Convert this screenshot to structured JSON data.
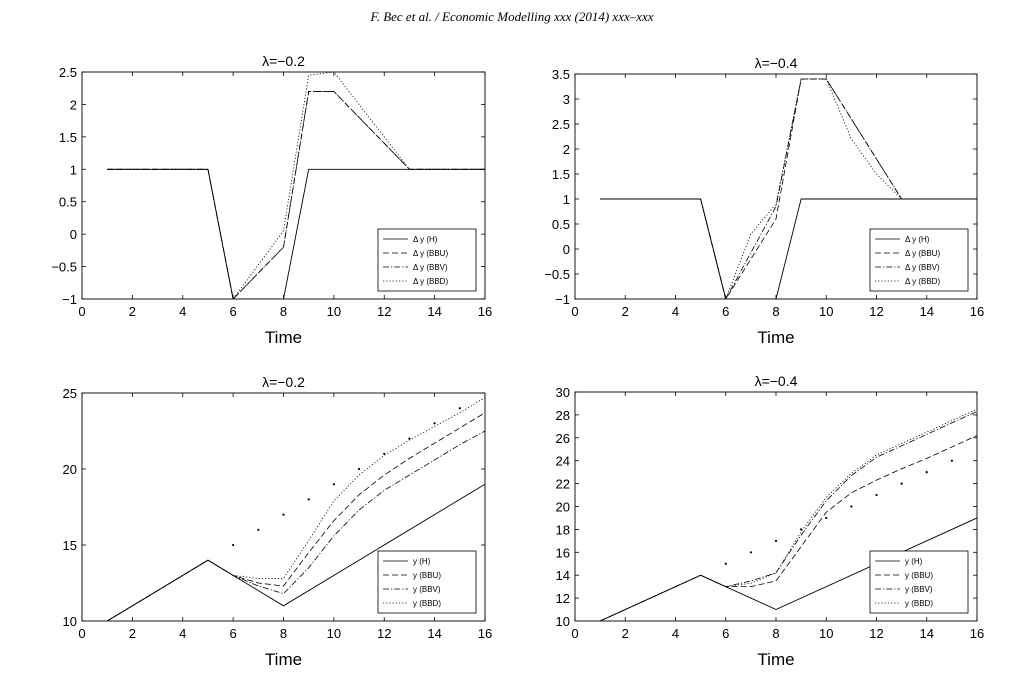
{
  "header": {
    "text": "F. Bec et al. / Economic Modelling xxx (2014) xxx–xxx"
  },
  "line_styles": {
    "H": "solid",
    "BBU": "dashed",
    "BBV": "dashdot",
    "BBD": "dotted"
  },
  "chart_data": [
    {
      "type": "line",
      "title": "λ=−0.2",
      "xlabel": "Time",
      "ylabel": "",
      "xlim": [
        0,
        16
      ],
      "ylim": [
        -1,
        2.5
      ],
      "xticks": [
        "0",
        "2",
        "4",
        "6",
        "8",
        "10",
        "12",
        "14",
        "16"
      ],
      "yticks": [
        "−1",
        "−0.5",
        "0",
        "0.5",
        "1",
        "1.5",
        "2",
        "2.5"
      ],
      "legend_position": "bottom-right",
      "series": [
        {
          "name": "Δ y (H)",
          "style": "H",
          "x": [
            1,
            5,
            6,
            8,
            9,
            16
          ],
          "y": [
            1,
            1,
            -1,
            -1,
            1,
            1
          ]
        },
        {
          "name": "Δ y (BBU)",
          "style": "BBU",
          "x": [
            1,
            5,
            6,
            8,
            9,
            10,
            13,
            16
          ],
          "y": [
            1,
            1,
            -1,
            -0.2,
            2.2,
            2.2,
            1,
            1
          ]
        },
        {
          "name": "Δ y (BBV)",
          "style": "BBV",
          "x": [
            1,
            5,
            6,
            8,
            9,
            10,
            13,
            16
          ],
          "y": [
            1,
            1,
            -1,
            -0.2,
            2.2,
            2.2,
            1,
            1
          ]
        },
        {
          "name": "Δ y (BBD)",
          "style": "BBD",
          "x": [
            1,
            5,
            6,
            8,
            9,
            10,
            13,
            16
          ],
          "y": [
            1,
            1,
            -1,
            0.05,
            2.45,
            2.5,
            1,
            1
          ]
        }
      ]
    },
    {
      "type": "line",
      "title": "λ=−0.4",
      "xlabel": "Time",
      "ylabel": "",
      "xlim": [
        0,
        16
      ],
      "ylim": [
        -1,
        3.5
      ],
      "xticks": [
        "0",
        "2",
        "4",
        "6",
        "8",
        "10",
        "12",
        "14",
        "16"
      ],
      "yticks": [
        "−1",
        "−0.5",
        "0",
        "0.5",
        "1",
        "1.5",
        "2",
        "2.5",
        "3",
        "3.5"
      ],
      "legend_position": "bottom-right",
      "series": [
        {
          "name": "Δ y (H)",
          "style": "H",
          "x": [
            1,
            5,
            6,
            8,
            9,
            16
          ],
          "y": [
            1,
            1,
            -1,
            -1,
            1,
            1
          ]
        },
        {
          "name": "Δ y (BBU)",
          "style": "BBU",
          "x": [
            1,
            5,
            6,
            8,
            9,
            10,
            13,
            16
          ],
          "y": [
            1,
            1,
            -1,
            0.6,
            3.4,
            3.4,
            1,
            1
          ]
        },
        {
          "name": "Δ y (BBV)",
          "style": "BBV",
          "x": [
            1,
            5,
            6,
            8,
            9,
            10,
            13,
            16
          ],
          "y": [
            1,
            1,
            -1,
            0.85,
            3.4,
            3.4,
            1,
            1
          ]
        },
        {
          "name": "Δ y (BBD)",
          "style": "BBD",
          "x": [
            1,
            5,
            6,
            7,
            8,
            9,
            10,
            11,
            12,
            13,
            16
          ],
          "y": [
            1,
            1,
            -1,
            0.3,
            0.9,
            3.4,
            3.4,
            2.2,
            1.5,
            1,
            1
          ]
        }
      ]
    },
    {
      "type": "line",
      "title": "λ=−0.2",
      "xlabel": "Time",
      "ylabel": "",
      "xlim": [
        0,
        16
      ],
      "ylim": [
        10,
        25
      ],
      "xticks": [
        "0",
        "2",
        "4",
        "6",
        "8",
        "10",
        "12",
        "14",
        "16"
      ],
      "yticks": [
        "10",
        "15",
        "20",
        "25"
      ],
      "legend_position": "bottom-right",
      "series": [
        {
          "name": "y (H)",
          "style": "H",
          "x": [
            1,
            5,
            8,
            16
          ],
          "y": [
            10,
            14,
            11,
            19
          ]
        },
        {
          "name": "y (BBU)",
          "style": "BBU",
          "x": [
            1,
            5,
            6,
            7,
            8,
            9,
            10,
            11,
            12,
            13,
            14,
            15,
            16
          ],
          "y": [
            10,
            14,
            13,
            12.5,
            12.3,
            14.5,
            16.6,
            18.3,
            19.6,
            20.7,
            21.7,
            22.7,
            23.7
          ]
        },
        {
          "name": "y (BBV)",
          "style": "BBV",
          "x": [
            1,
            5,
            6,
            7,
            8,
            9,
            10,
            11,
            12,
            13,
            14,
            15,
            16
          ],
          "y": [
            10,
            14,
            13,
            12.3,
            11.8,
            13.5,
            15.6,
            17.3,
            18.6,
            19.6,
            20.6,
            21.6,
            22.5
          ]
        },
        {
          "name": "y (BBD)",
          "style": "BBD",
          "x": [
            1,
            5,
            6,
            7,
            8,
            9,
            10,
            11,
            12,
            13,
            14,
            15,
            16
          ],
          "y": [
            10,
            14,
            13,
            12.8,
            12.8,
            15.3,
            17.9,
            19.6,
            20.9,
            21.9,
            22.8,
            23.7,
            24.7
          ]
        }
      ],
      "scatter_points": {
        "x": [
          6,
          7,
          8,
          9,
          10,
          11,
          12,
          13,
          14,
          15
        ],
        "y": [
          15,
          16,
          17,
          18,
          19,
          20,
          21,
          22,
          23,
          24
        ]
      }
    },
    {
      "type": "line",
      "title": "λ=−0.4",
      "xlabel": "Time",
      "ylabel": "",
      "xlim": [
        0,
        16
      ],
      "ylim": [
        10,
        30
      ],
      "xticks": [
        "0",
        "2",
        "4",
        "6",
        "8",
        "10",
        "12",
        "14",
        "16"
      ],
      "yticks": [
        "10",
        "12",
        "14",
        "16",
        "18",
        "20",
        "22",
        "24",
        "26",
        "28",
        "30"
      ],
      "legend_position": "bottom-right",
      "series": [
        {
          "name": "y (H)",
          "style": "H",
          "x": [
            1,
            5,
            8,
            16
          ],
          "y": [
            10,
            14,
            11,
            19
          ]
        },
        {
          "name": "y (BBU)",
          "style": "BBU",
          "x": [
            1,
            5,
            6,
            7,
            8,
            9,
            10,
            11,
            12,
            13,
            14,
            15,
            16
          ],
          "y": [
            10,
            14,
            13,
            13,
            13.5,
            16.5,
            19.5,
            21.2,
            22.3,
            23.3,
            24.2,
            25.2,
            26.2
          ]
        },
        {
          "name": "y (BBV)",
          "style": "BBV",
          "x": [
            1,
            5,
            6,
            7,
            8,
            9,
            10,
            11,
            12,
            13,
            14,
            15,
            16
          ],
          "y": [
            10,
            14,
            13,
            13.5,
            14.2,
            17.5,
            20.5,
            22.7,
            24.3,
            25.3,
            26.3,
            27.3,
            28.3
          ]
        },
        {
          "name": "y (BBD)",
          "style": "BBD",
          "x": [
            1,
            5,
            6,
            7,
            8,
            9,
            10,
            11,
            12,
            13,
            14,
            15,
            16
          ],
          "y": [
            10,
            14,
            13,
            13.3,
            14.2,
            17.8,
            20.8,
            22.9,
            24.5,
            25.5,
            26.5,
            27.5,
            28.5
          ]
        }
      ],
      "scatter_points": {
        "x": [
          6,
          7,
          8,
          9,
          10,
          11,
          12,
          13,
          14,
          15
        ],
        "y": [
          15,
          16,
          17,
          18,
          19,
          20,
          21,
          22,
          23,
          24
        ]
      }
    }
  ]
}
